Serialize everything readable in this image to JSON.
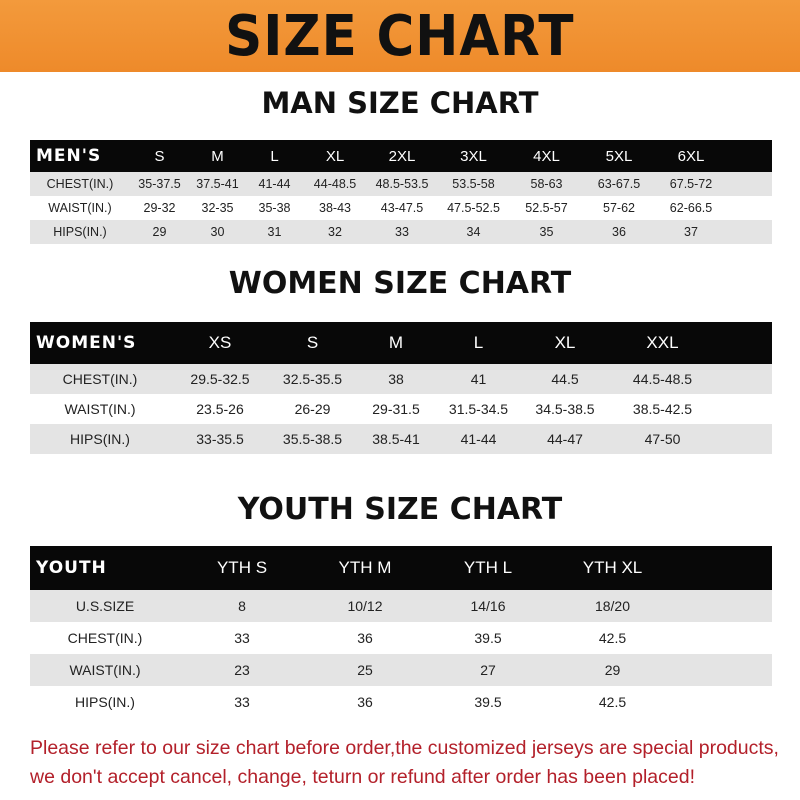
{
  "banner": "SIZE CHART",
  "men": {
    "title": "MAN SIZE CHART",
    "header": [
      "MEN'S",
      "S",
      "M",
      "L",
      "XL",
      "2XL",
      "3XL",
      "4XL",
      "5XL",
      "6XL"
    ],
    "rows": [
      [
        "CHEST(IN.)",
        "35-37.5",
        "37.5-41",
        "41-44",
        "44-48.5",
        "48.5-53.5",
        "53.5-58",
        "58-63",
        "63-67.5",
        "67.5-72"
      ],
      [
        "WAIST(IN.)",
        "29-32",
        "32-35",
        "35-38",
        "38-43",
        "43-47.5",
        "47.5-52.5",
        "52.5-57",
        "57-62",
        "62-66.5"
      ],
      [
        "HIPS(IN.)",
        "29",
        "30",
        "31",
        "32",
        "33",
        "34",
        "35",
        "36",
        "37"
      ]
    ]
  },
  "women": {
    "title": "WOMEN SIZE CHART",
    "header": [
      "WOMEN'S",
      "XS",
      "S",
      "M",
      "L",
      "XL",
      "XXL"
    ],
    "rows": [
      [
        "CHEST(IN.)",
        "29.5-32.5",
        "32.5-35.5",
        "38",
        "41",
        "44.5",
        "44.5-48.5"
      ],
      [
        "WAIST(IN.)",
        "23.5-26",
        "26-29",
        "29-31.5",
        "31.5-34.5",
        "34.5-38.5",
        "38.5-42.5"
      ],
      [
        "HIPS(IN.)",
        "33-35.5",
        "35.5-38.5",
        "38.5-41",
        "41-44",
        "44-47",
        "47-50"
      ]
    ]
  },
  "youth": {
    "title": "YOUTH SIZE CHART",
    "header": [
      "YOUTH",
      "YTH S",
      "YTH M",
      "YTH L",
      "YTH XL"
    ],
    "rows": [
      [
        "U.S.SIZE",
        "8",
        "10/12",
        "14/16",
        "18/20"
      ],
      [
        "CHEST(IN.)",
        "33",
        "36",
        "39.5",
        "42.5"
      ],
      [
        "WAIST(IN.)",
        "23",
        "25",
        "27",
        "29"
      ],
      [
        "HIPS(IN.)",
        "33",
        "36",
        "39.5",
        "42.5"
      ]
    ]
  },
  "note": {
    "line1": "Please refer to our size chart before order,the customized jerseys are special products,",
    "line2": "we don't accept cancel, change, teturn or refund after order has been placed!"
  }
}
